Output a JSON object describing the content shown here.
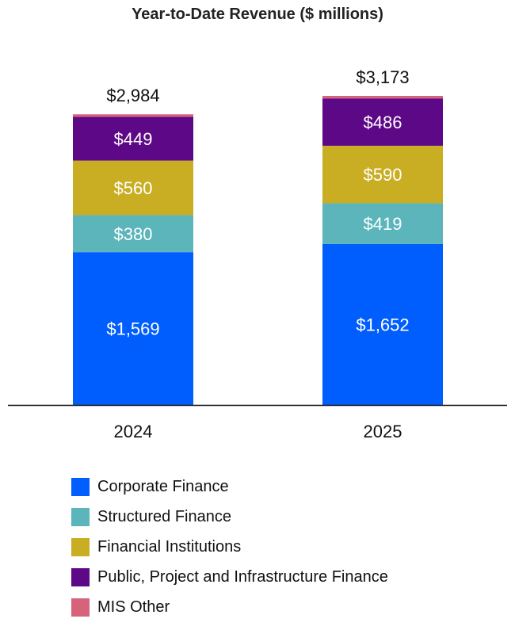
{
  "chart_data": {
    "type": "bar",
    "stacked": true,
    "title": "Year-to-Date Revenue ($ millions)",
    "categories": [
      "2024",
      "2025"
    ],
    "totals": [
      2984,
      3173
    ],
    "total_labels": [
      "$2,984",
      "$3,173"
    ],
    "series": [
      {
        "name": "Corporate Finance",
        "color": "#005EFF",
        "values": [
          1569,
          1652
        ],
        "labels": [
          "$1,569",
          "$1,652"
        ]
      },
      {
        "name": "Structured Finance",
        "color": "#5BB5BA",
        "values": [
          380,
          419
        ],
        "labels": [
          "$380",
          "$419"
        ]
      },
      {
        "name": "Financial Institutions",
        "color": "#C9AD22",
        "values": [
          560,
          590
        ],
        "labels": [
          "$560",
          "$590"
        ]
      },
      {
        "name": "Public, Project and Infrastructure Finance",
        "color": "#5C0887",
        "values": [
          449,
          486
        ],
        "labels": [
          "$449",
          "$486"
        ]
      },
      {
        "name": "MIS Other",
        "color": "#D6637A",
        "values": [
          26,
          26
        ],
        "labels": [
          "",
          ""
        ]
      }
    ],
    "ylim": [
      0,
      3173
    ],
    "grid": false,
    "legend_position": "bottom"
  }
}
